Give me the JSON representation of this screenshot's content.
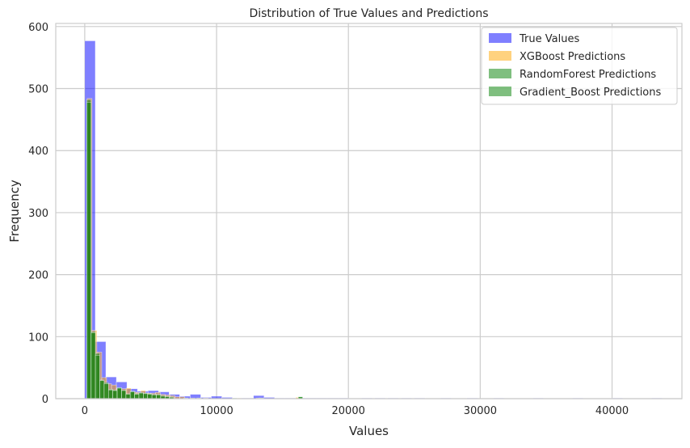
{
  "chart_data": {
    "type": "bar",
    "subtype": "histogram",
    "title": "Distribution of True Values and Predictions",
    "xlabel": "Values",
    "ylabel": "Frequency",
    "xlim": [
      -2200,
      45300
    ],
    "ylim": [
      0,
      605
    ],
    "xticks": [
      0,
      10000,
      20000,
      30000,
      40000
    ],
    "yticks": [
      0,
      100,
      200,
      300,
      400,
      500,
      600
    ],
    "grid": true,
    "legend_position": "top-right",
    "series": [
      {
        "name": "True Values",
        "color": "#0000ff",
        "opacity": 0.5,
        "bins": [
          [
            0,
            800,
            577
          ],
          [
            800,
            1600,
            92
          ],
          [
            1600,
            2400,
            35
          ],
          [
            2400,
            3200,
            27
          ],
          [
            3200,
            4000,
            16
          ],
          [
            4000,
            4800,
            12
          ],
          [
            4800,
            5600,
            13
          ],
          [
            5600,
            6400,
            11
          ],
          [
            6400,
            7200,
            7
          ],
          [
            7200,
            8000,
            4
          ],
          [
            8000,
            8800,
            7
          ],
          [
            8800,
            9600,
            2
          ],
          [
            9600,
            10400,
            4
          ],
          [
            10400,
            11200,
            2
          ],
          [
            11200,
            12000,
            1
          ],
          [
            12000,
            12800,
            1
          ],
          [
            12800,
            13600,
            5
          ],
          [
            13600,
            14400,
            2
          ],
          [
            14400,
            15200,
            1
          ],
          [
            15200,
            16000,
            1
          ],
          [
            16000,
            16800,
            1
          ],
          [
            16800,
            17600,
            1
          ],
          [
            17600,
            18400,
            1
          ],
          [
            18400,
            19200,
            1
          ],
          [
            19200,
            20000,
            1
          ],
          [
            21000,
            21800,
            1
          ],
          [
            22000,
            22800,
            1
          ],
          [
            23000,
            23800,
            1
          ],
          [
            24000,
            24800,
            1
          ],
          [
            25000,
            25800,
            1
          ],
          [
            27000,
            27800,
            1
          ],
          [
            29000,
            29800,
            1
          ],
          [
            31000,
            31800,
            1
          ],
          [
            34000,
            34800,
            1
          ],
          [
            37000,
            37800,
            1
          ],
          [
            40000,
            40800,
            1
          ],
          [
            43000,
            43800,
            1
          ]
        ]
      },
      {
        "name": "XGBoost Predictions",
        "color": "#ffa500",
        "opacity": 0.5,
        "bins": [
          [
            180,
            550,
            484
          ],
          [
            550,
            920,
            110
          ],
          [
            920,
            1290,
            75
          ],
          [
            1290,
            1660,
            34
          ],
          [
            1660,
            2030,
            24
          ],
          [
            2030,
            2400,
            22
          ],
          [
            2400,
            2770,
            16
          ],
          [
            2770,
            3140,
            16
          ],
          [
            3140,
            3510,
            17
          ],
          [
            3510,
            3880,
            11
          ],
          [
            3880,
            4250,
            10
          ],
          [
            4250,
            4620,
            13
          ],
          [
            4620,
            4990,
            9
          ],
          [
            4990,
            5360,
            9
          ],
          [
            5360,
            5730,
            10
          ],
          [
            5730,
            6100,
            7
          ],
          [
            6100,
            6470,
            6
          ],
          [
            6470,
            6840,
            5
          ],
          [
            6840,
            7210,
            3
          ],
          [
            7210,
            7580,
            3
          ],
          [
            8000,
            8370,
            1
          ],
          [
            9000,
            9370,
            1
          ],
          [
            11500,
            11870,
            1
          ],
          [
            13000,
            13370,
            1
          ],
          [
            16000,
            16370,
            2
          ]
        ]
      },
      {
        "name": "RandomForest Predictions",
        "color": "#008000",
        "opacity": 0.5,
        "bins": [
          [
            150,
            480,
            482
          ],
          [
            480,
            810,
            108
          ],
          [
            810,
            1140,
            73
          ],
          [
            1140,
            1470,
            30
          ],
          [
            1470,
            1800,
            26
          ],
          [
            1800,
            2130,
            15
          ],
          [
            2130,
            2460,
            14
          ],
          [
            2460,
            2790,
            18
          ],
          [
            2790,
            3120,
            14
          ],
          [
            3120,
            3450,
            8
          ],
          [
            3450,
            3780,
            12
          ],
          [
            3780,
            4110,
            8
          ],
          [
            4110,
            4440,
            10
          ],
          [
            4440,
            4770,
            9
          ],
          [
            4770,
            5100,
            8
          ],
          [
            5100,
            5430,
            7
          ],
          [
            5430,
            5760,
            7
          ],
          [
            5760,
            6090,
            5
          ],
          [
            6090,
            6420,
            4
          ],
          [
            6420,
            6750,
            3
          ],
          [
            7500,
            7830,
            1
          ],
          [
            8500,
            8830,
            1
          ],
          [
            11200,
            11530,
            1
          ],
          [
            13200,
            13530,
            1
          ],
          [
            16200,
            16530,
            3
          ]
        ]
      },
      {
        "name": "Gradient_Boost Predictions",
        "color": "#008000",
        "opacity": 0.5,
        "bins": [
          [
            150,
            480,
            478
          ],
          [
            480,
            810,
            106
          ],
          [
            810,
            1140,
            70
          ],
          [
            1140,
            1470,
            29
          ],
          [
            1470,
            1800,
            24
          ],
          [
            1800,
            2130,
            14
          ],
          [
            2130,
            2460,
            13
          ],
          [
            2460,
            2790,
            17
          ],
          [
            2790,
            3120,
            13
          ],
          [
            3120,
            3450,
            7
          ],
          [
            3450,
            3780,
            11
          ],
          [
            3780,
            4110,
            7
          ],
          [
            4110,
            4440,
            9
          ],
          [
            4440,
            4770,
            8
          ],
          [
            4770,
            5100,
            7
          ],
          [
            5100,
            5430,
            6
          ],
          [
            5430,
            5760,
            6
          ],
          [
            5760,
            6090,
            4
          ],
          [
            6090,
            6420,
            3
          ],
          [
            6420,
            6750,
            2
          ],
          [
            7500,
            7830,
            1
          ],
          [
            8500,
            8830,
            1
          ],
          [
            11200,
            11530,
            1
          ],
          [
            13200,
            13530,
            1
          ],
          [
            16200,
            16530,
            3
          ]
        ]
      }
    ]
  }
}
